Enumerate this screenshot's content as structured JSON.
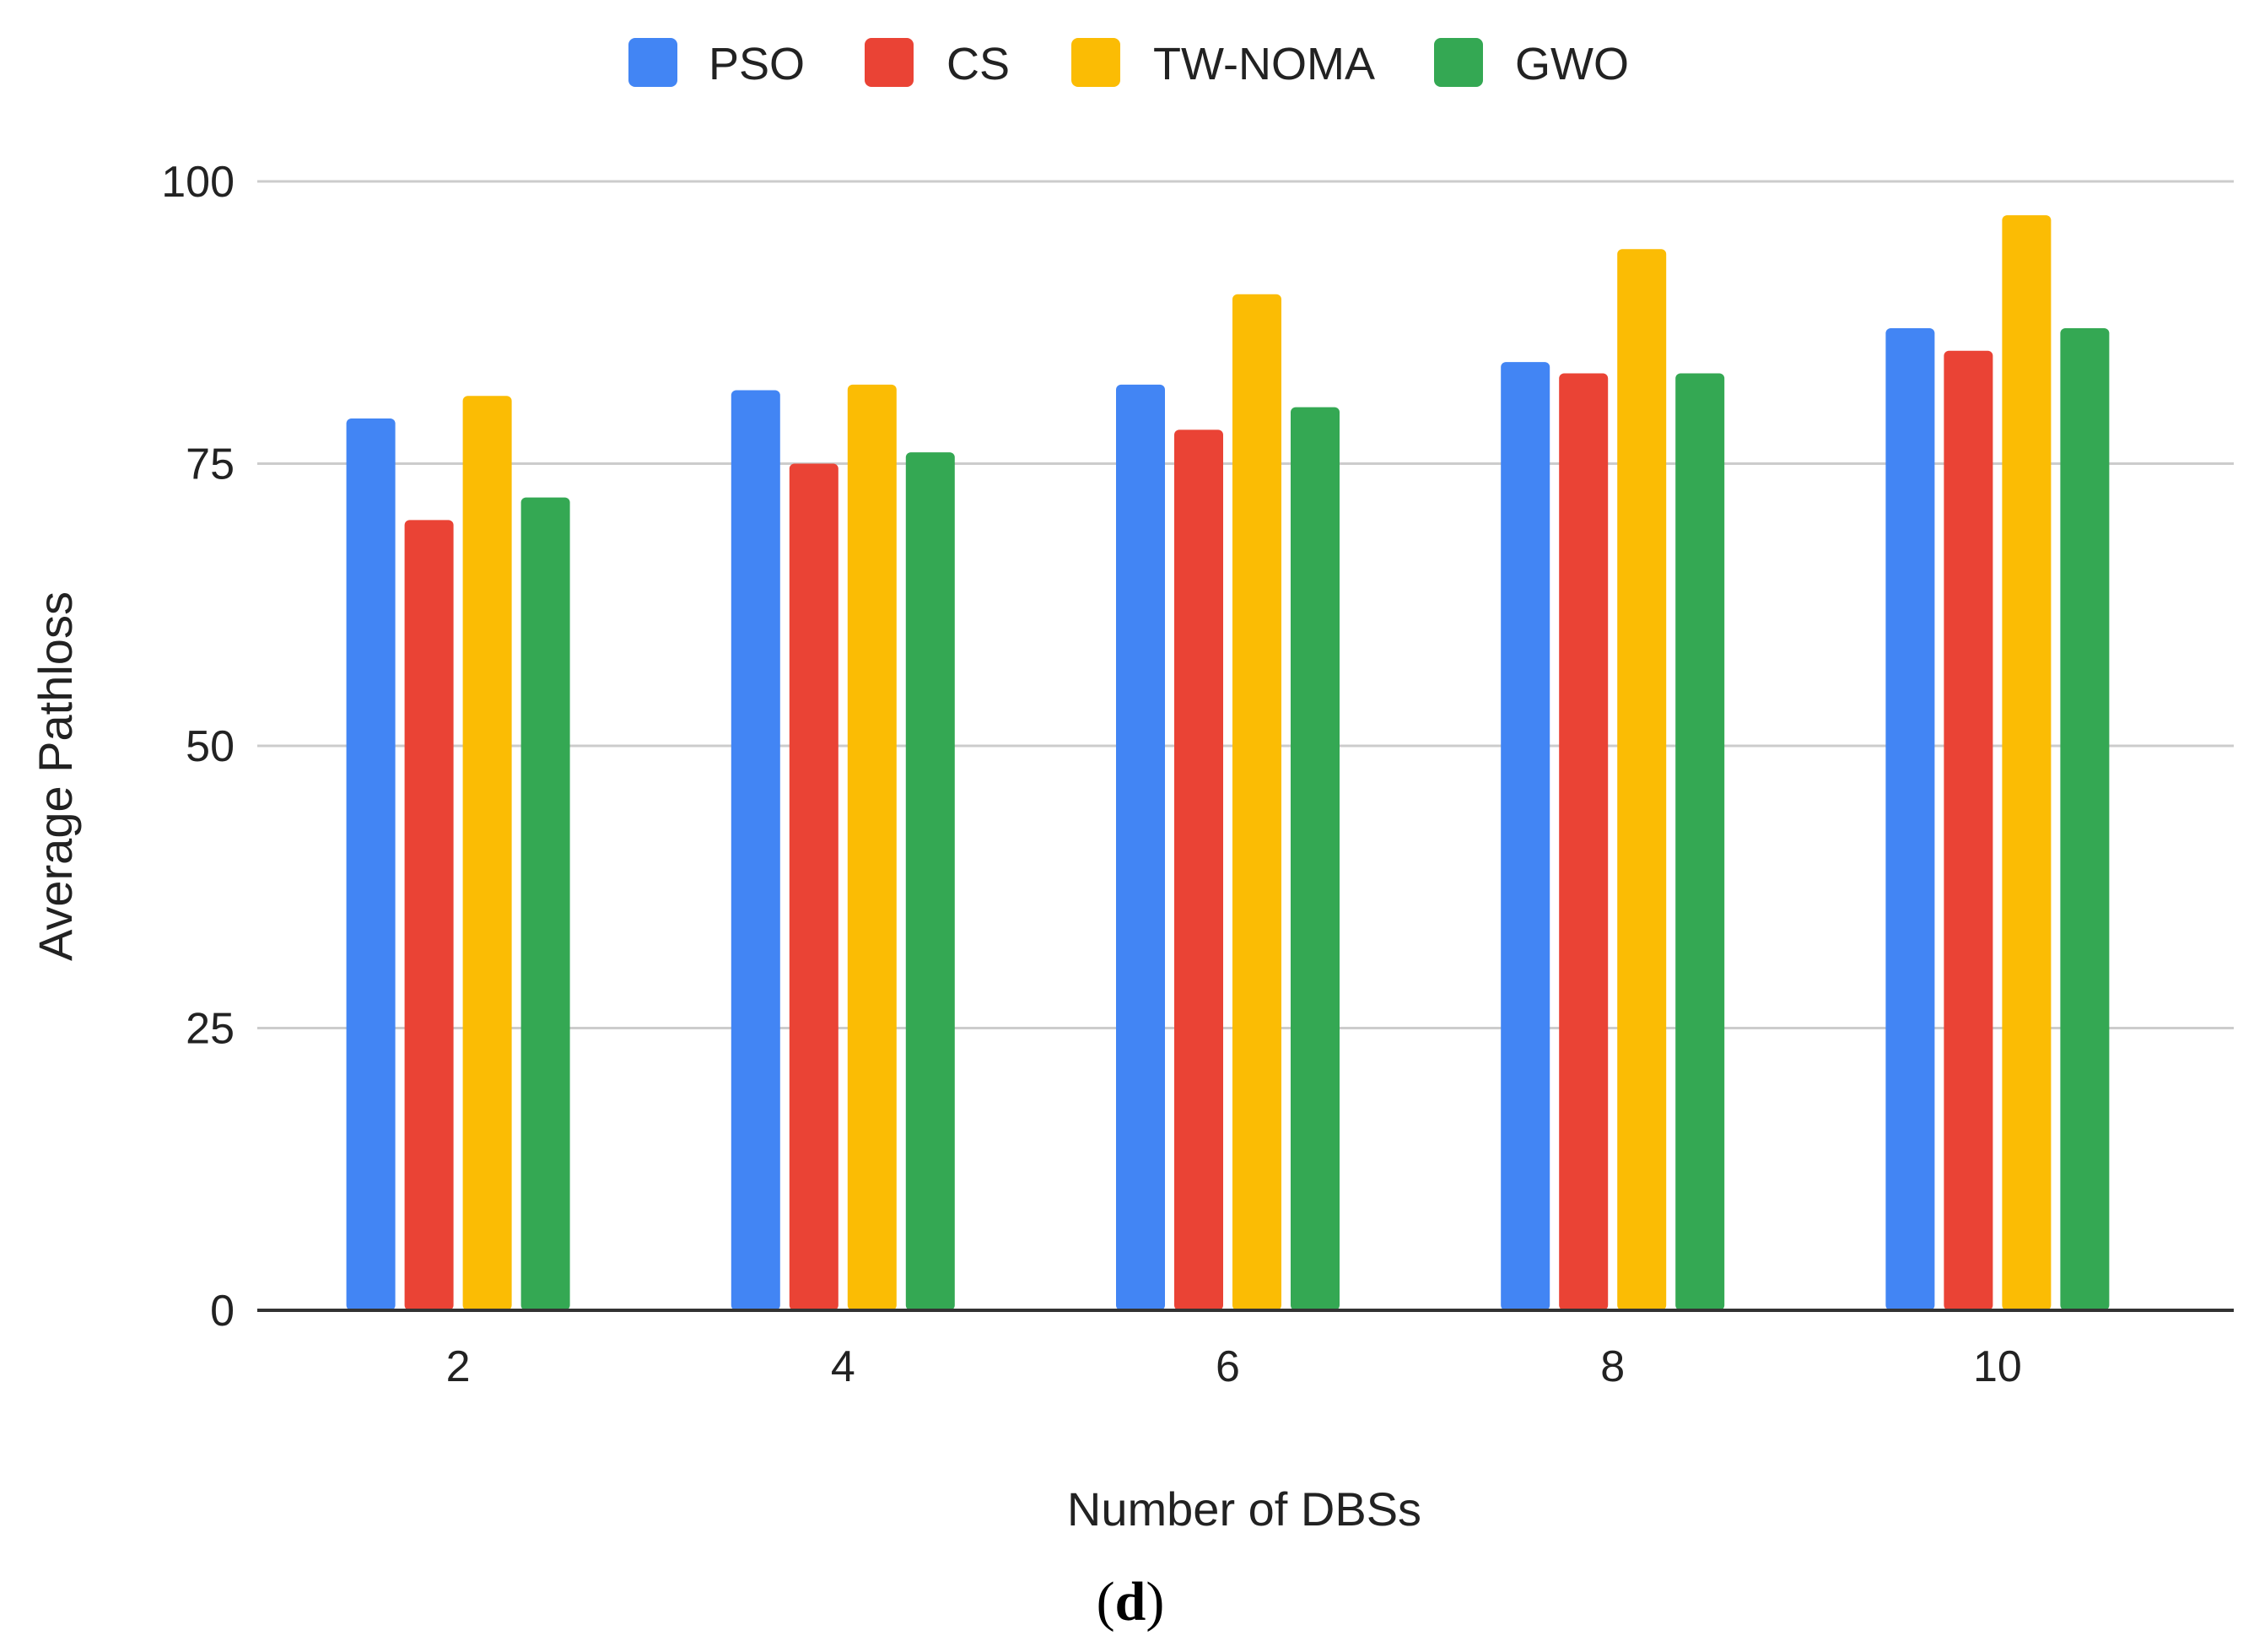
{
  "chart_data": {
    "type": "bar",
    "title": "",
    "xlabel": "Number of DBSs",
    "ylabel": "Average Pathloss",
    "categories": [
      "2",
      "4",
      "6",
      "8",
      "10"
    ],
    "series": [
      {
        "name": "PSO",
        "color": "#4285F4",
        "values": [
          79,
          81.5,
          82,
          84,
          87
        ]
      },
      {
        "name": "CS",
        "color": "#EA4335",
        "values": [
          70,
          75,
          78,
          83,
          85
        ]
      },
      {
        "name": "TW-NOMA",
        "color": "#FBBC04",
        "values": [
          81,
          82,
          90,
          94,
          97
        ]
      },
      {
        "name": "GWO",
        "color": "#34A853",
        "values": [
          72,
          76,
          80,
          83,
          87
        ]
      }
    ],
    "ylim": [
      0,
      100
    ],
    "yticks": [
      "0",
      "25",
      "50",
      "75",
      "100"
    ],
    "grid": true,
    "legend_position": "top-center"
  },
  "caption": {
    "open": "(",
    "letter": "d",
    "close": ")"
  }
}
